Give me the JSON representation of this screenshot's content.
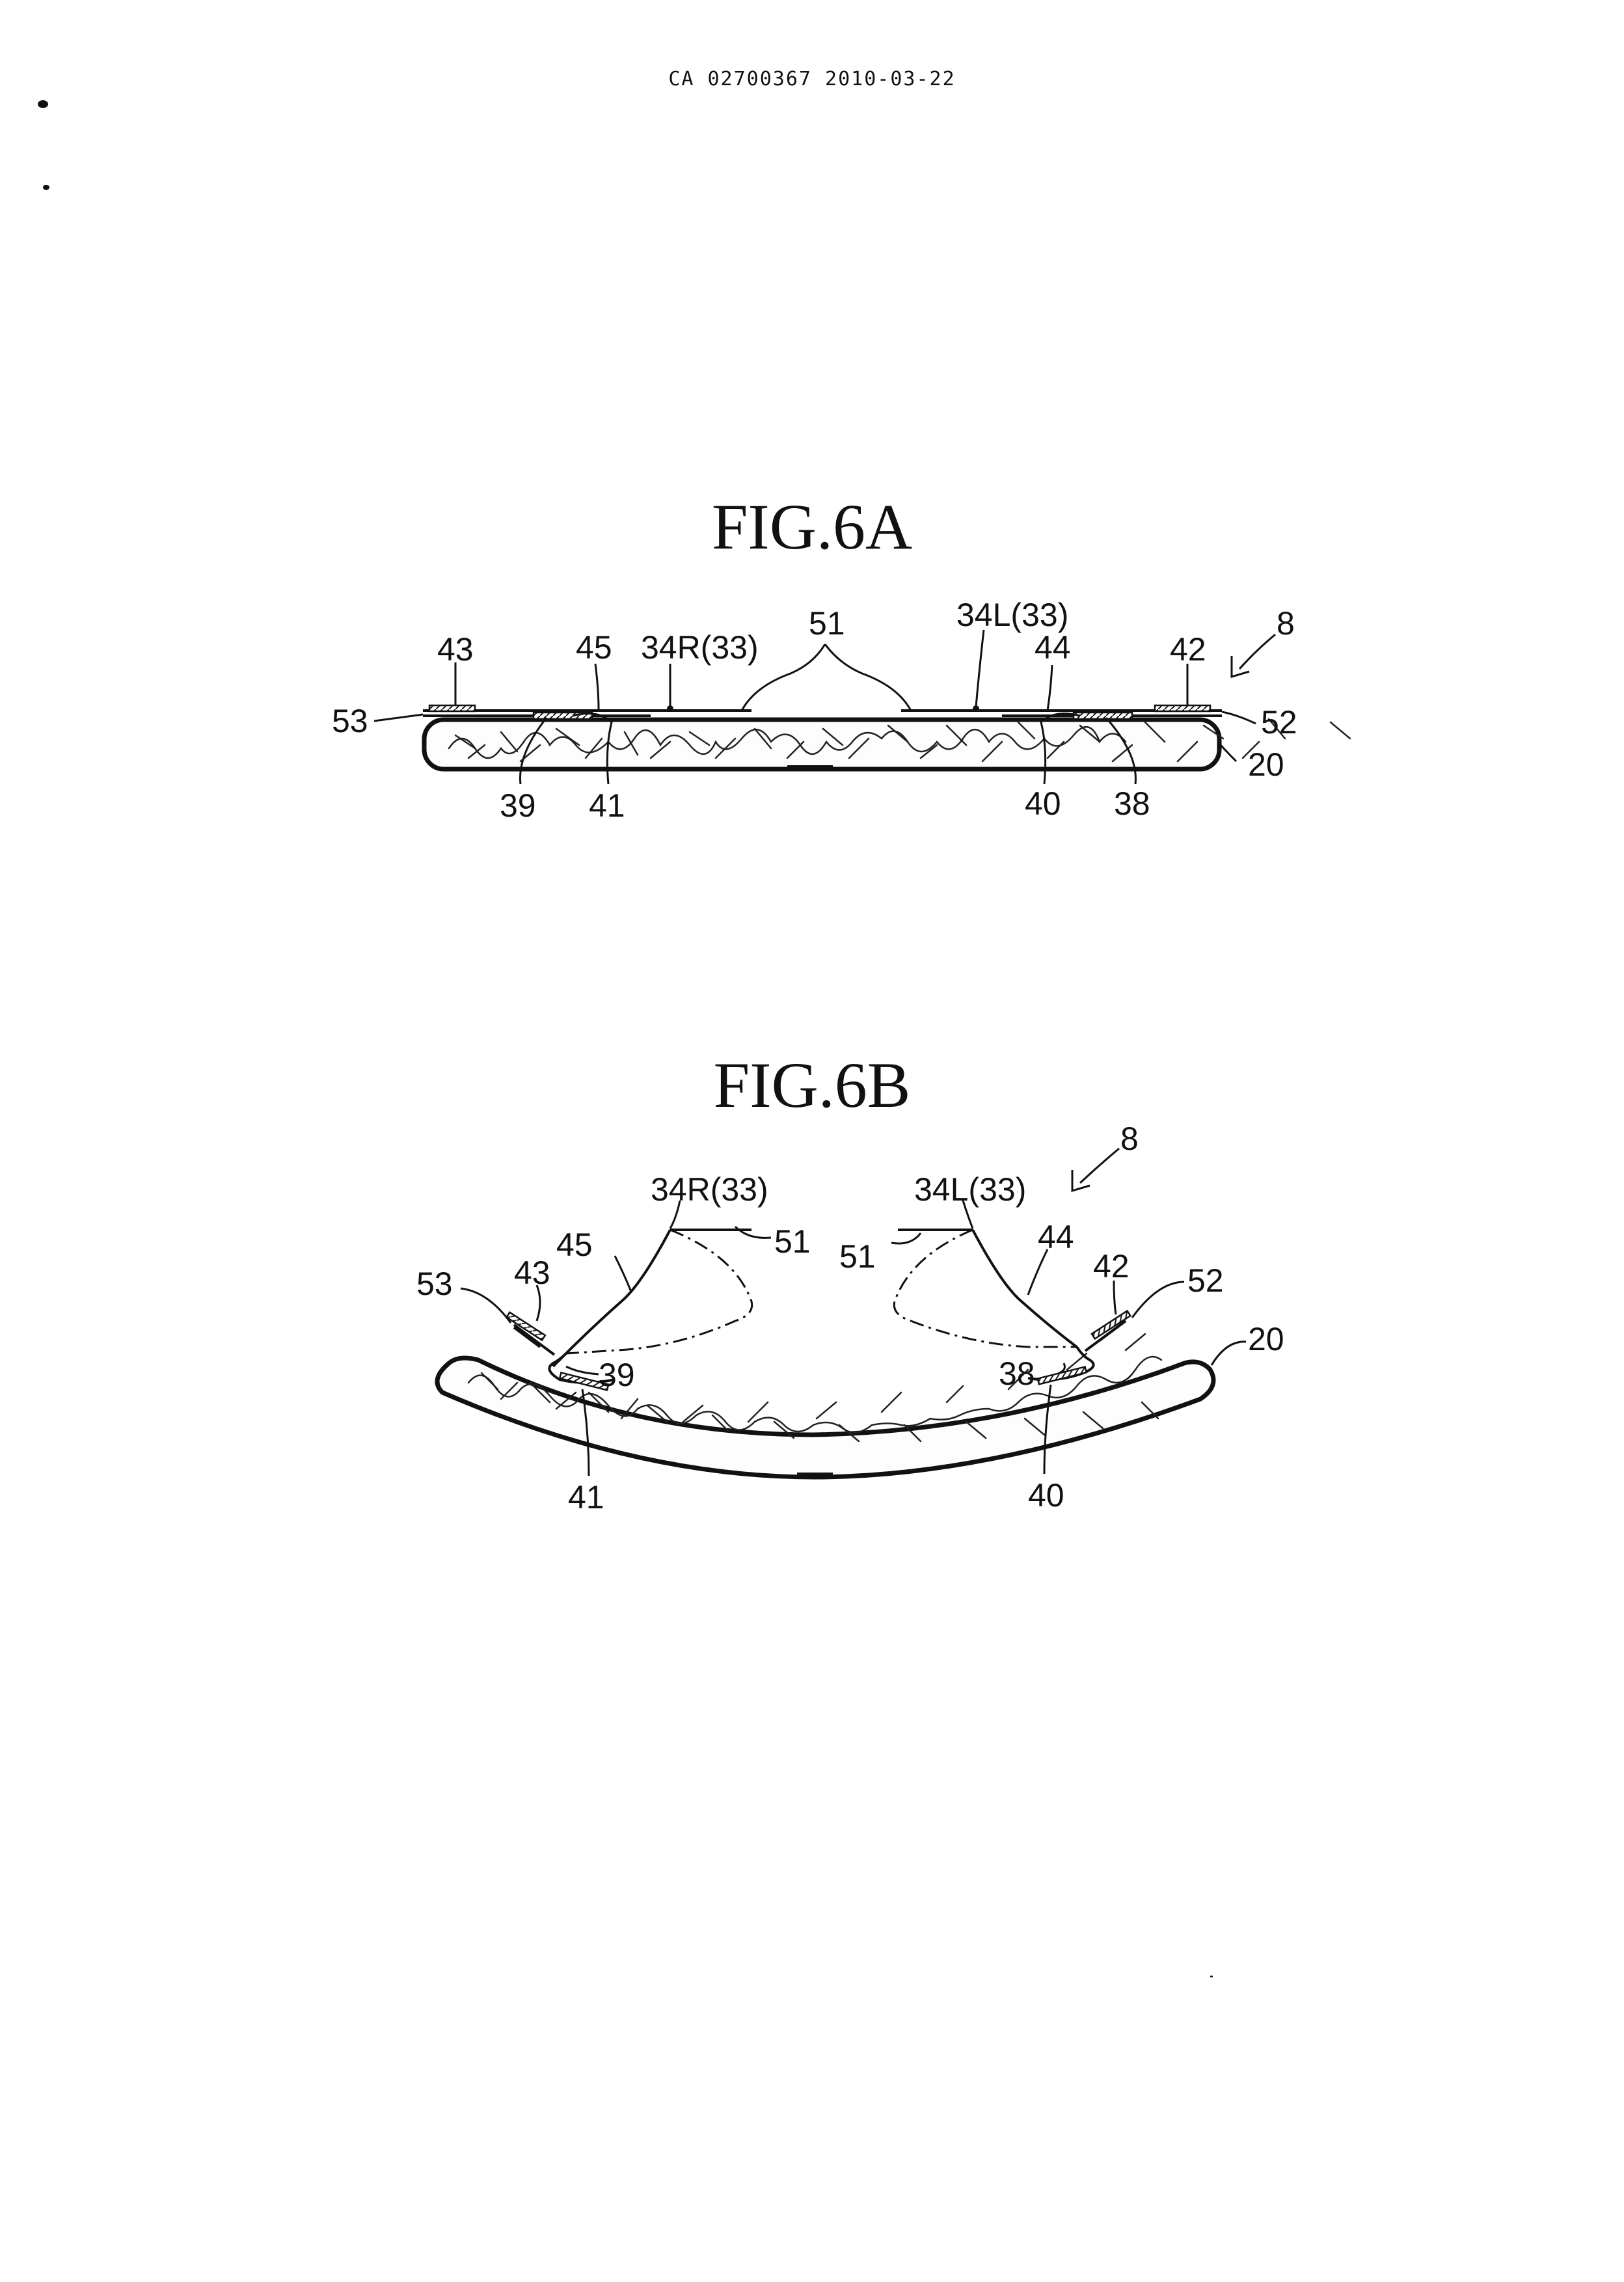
{
  "header": {
    "doc_number": "CA 02700367 2010-03-22"
  },
  "figures": [
    {
      "title": "FIG.6A",
      "labels": {
        "l43": "43",
        "l45": "45",
        "l34r": "34R(33)",
        "l51": "51",
        "l34l": "34L(33)",
        "l44": "44",
        "l42": "42",
        "l8": "8",
        "l53": "53",
        "l52": "52",
        "l20": "20",
        "l39": "39",
        "l41": "41",
        "l40": "40",
        "l38": "38"
      }
    },
    {
      "title": "FIG.6B",
      "labels": {
        "l34r": "34R(33)",
        "l34l": "34L(33)",
        "l8": "8",
        "l45": "45",
        "l51a": "51",
        "l51b": "51",
        "l44": "44",
        "l43": "43",
        "l42": "42",
        "l53": "53",
        "l52": "52",
        "l20": "20",
        "l39": "39",
        "l38": "38",
        "l41": "41",
        "l40": "40"
      }
    }
  ]
}
